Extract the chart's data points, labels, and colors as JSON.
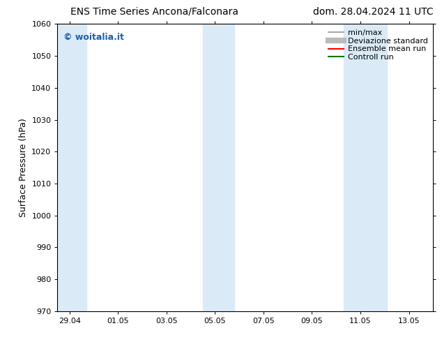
{
  "title_left": "ENS Time Series Ancona/Falconara",
  "title_right": "dom. 28.04.2024 11 UTC",
  "ylabel": "Surface Pressure (hPa)",
  "ylim": [
    970,
    1060
  ],
  "yticks": [
    970,
    980,
    990,
    1000,
    1010,
    1020,
    1030,
    1040,
    1050,
    1060
  ],
  "xtick_labels": [
    "29.04",
    "01.05",
    "03.05",
    "05.05",
    "07.05",
    "09.05",
    "11.05",
    "13.05"
  ],
  "xtick_positions": [
    0,
    2,
    4,
    6,
    8,
    10,
    12,
    14
  ],
  "xlim": [
    -0.5,
    15.0
  ],
  "shaded_bands": [
    {
      "x_start": -0.5,
      "x_end": 0.7
    },
    {
      "x_start": 5.5,
      "x_end": 6.8
    },
    {
      "x_start": 11.3,
      "x_end": 13.1
    }
  ],
  "shaded_color": "#daeaf6",
  "background_color": "#ffffff",
  "watermark_text": "© woitalia.it",
  "watermark_color": "#1a5fa8",
  "legend_items": [
    {
      "label": "min/max",
      "color": "#999999",
      "lw": 1.2,
      "ls": "-"
    },
    {
      "label": "Deviazione standard",
      "color": "#bbbbbb",
      "lw": 6,
      "ls": "-"
    },
    {
      "label": "Ensemble mean run",
      "color": "#ff0000",
      "lw": 1.5,
      "ls": "-"
    },
    {
      "label": "Controll run",
      "color": "#007700",
      "lw": 1.5,
      "ls": "-"
    }
  ],
  "tick_color": "#000000",
  "spine_color": "#000000",
  "title_fontsize": 10,
  "ylabel_fontsize": 9,
  "tick_fontsize": 8,
  "legend_fontsize": 8,
  "watermark_fontsize": 9
}
